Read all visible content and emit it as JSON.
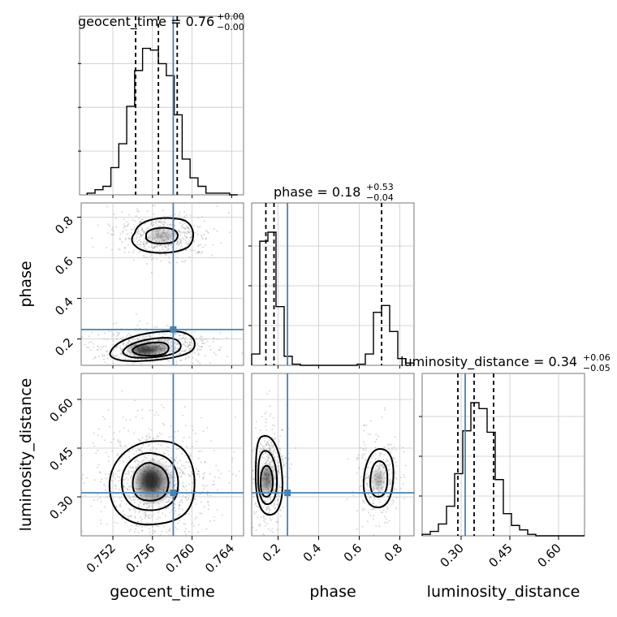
{
  "chart_data": {
    "type": "corner",
    "parameters": [
      "geocent_time",
      "phase",
      "luminosity_distance"
    ],
    "truths": {
      "geocent_time": 0.7581,
      "phase": 0.2465,
      "luminosity_distance": 0.3125
    },
    "colors": {
      "truth": "#4682b4",
      "hist": "#000000",
      "grid": "#c8c8c8",
      "scatter": "#8c8c8c"
    },
    "axis_ranges": {
      "geocent_time": [
        0.7488,
        0.7652
      ],
      "phase": [
        0.07,
        0.87
      ],
      "luminosity_distance": [
        0.18,
        0.68
      ]
    },
    "tick_labels": {
      "geocent_time": [
        "0.752",
        "0.756",
        "0.760",
        "0.764"
      ],
      "phase_x": [
        "0.2",
        "0.4",
        "0.6",
        "0.8"
      ],
      "phase_y": [
        "0.2",
        "0.4",
        "0.6",
        "0.8"
      ],
      "luminosity_distance_x": [
        "0.30",
        "0.45",
        "0.60"
      ],
      "luminosity_distance_y": [
        "0.30",
        "0.45",
        "0.60"
      ]
    },
    "tick_values": {
      "geocent_time": [
        0.752,
        0.756,
        0.76,
        0.764
      ],
      "phase": [
        0.2,
        0.4,
        0.6,
        0.8
      ],
      "luminosity_distance": [
        0.3,
        0.45,
        0.6
      ]
    },
    "axis_labels": {
      "geocent_time": "geocent_time",
      "phase": "phase",
      "luminosity_distance": "luminosity_distance"
    },
    "titles": [
      {
        "param": "geocent_time",
        "name": "geocent_time",
        "eq": " = ",
        "median": "0.76",
        "plus": "+0.00",
        "minus": "−0.00"
      },
      {
        "param": "phase",
        "name": "phase",
        "eq": " = ",
        "median": "0.18",
        "plus": "+0.53",
        "minus": "−0.04"
      },
      {
        "param": "luminosity_distance",
        "name": "luminosity_distance",
        "eq": " = ",
        "median": "0.34",
        "plus": "+0.06",
        "minus": "−0.05"
      }
    ],
    "histograms": {
      "geocent_time": {
        "bin_edges": [
          0.7494,
          0.7502,
          0.751,
          0.7518,
          0.7526,
          0.7534,
          0.7542,
          0.755,
          0.7558,
          0.7566,
          0.7574,
          0.7582,
          0.759,
          0.7598,
          0.7606,
          0.7614,
          0.7622,
          0.763,
          0.7638,
          0.7646
        ],
        "counts": [
          1,
          3,
          5,
          16,
          30,
          52,
          73,
          86,
          85,
          77,
          70,
          47,
          21,
          10,
          5,
          1,
          1,
          1,
          0
        ],
        "quantiles": [
          0.7543,
          0.7566,
          0.7585
        ]
      },
      "phase": {
        "bin_edges": [
          0.07,
          0.11,
          0.15,
          0.19,
          0.23,
          0.27,
          0.31,
          0.35,
          0.39,
          0.43,
          0.47,
          0.51,
          0.55,
          0.59,
          0.63,
          0.67,
          0.71,
          0.75,
          0.79,
          0.83,
          0.87
        ],
        "counts": [
          10,
          110,
          118,
          52,
          8,
          1,
          0,
          0,
          0,
          0,
          0,
          0,
          0,
          1,
          10,
          47,
          53,
          30,
          6,
          2
        ],
        "quantiles": [
          0.14,
          0.18,
          0.71
        ]
      },
      "luminosity_distance": {
        "bin_edges": [
          0.18,
          0.205,
          0.23,
          0.255,
          0.28,
          0.305,
          0.33,
          0.355,
          0.38,
          0.405,
          0.43,
          0.455,
          0.48,
          0.505,
          0.53,
          0.555,
          0.58,
          0.605,
          0.63,
          0.655,
          0.68
        ],
        "counts": [
          1,
          3,
          8,
          20,
          42,
          71,
          90,
          86,
          70,
          38,
          15,
          7,
          4,
          1,
          0,
          0,
          0,
          0,
          0,
          0
        ],
        "quantiles": [
          0.29,
          0.34,
          0.4
        ]
      }
    }
  }
}
